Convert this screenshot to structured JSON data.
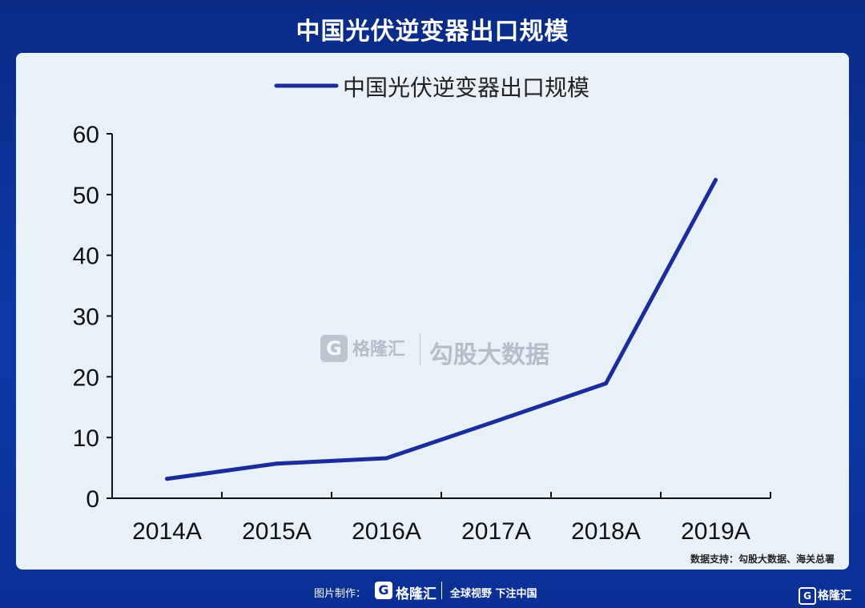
{
  "page": {
    "title": "中国光伏逆变器出口规模",
    "source": "数据支持：勾股大数据、海关总署"
  },
  "watermark": {
    "brand": "格隆汇",
    "text": "勾股大数据"
  },
  "footer": {
    "credit": "图片制作：",
    "brand": "格隆汇",
    "slogan": "全球视野 下注中国",
    "corner_brand": "格隆汇"
  },
  "icons": {
    "logo": "g-logo-icon"
  },
  "colors": {
    "line": "#1a2d9a",
    "background": "#0d3aa8",
    "panel": "#e8f1f8"
  },
  "chart_data": {
    "type": "line",
    "categories": [
      "2014A",
      "2015A",
      "2016A",
      "2017A",
      "2018A",
      "2019A"
    ],
    "series": [
      {
        "name": "中国光伏逆变器出口规模",
        "values": [
          3.2,
          5.7,
          6.6,
          12.7,
          18.9,
          52.4
        ]
      }
    ],
    "ylim": [
      0,
      60
    ],
    "yticks": [
      0,
      10,
      20,
      30,
      40,
      50,
      60
    ],
    "legend": "top-center",
    "grid": false
  }
}
